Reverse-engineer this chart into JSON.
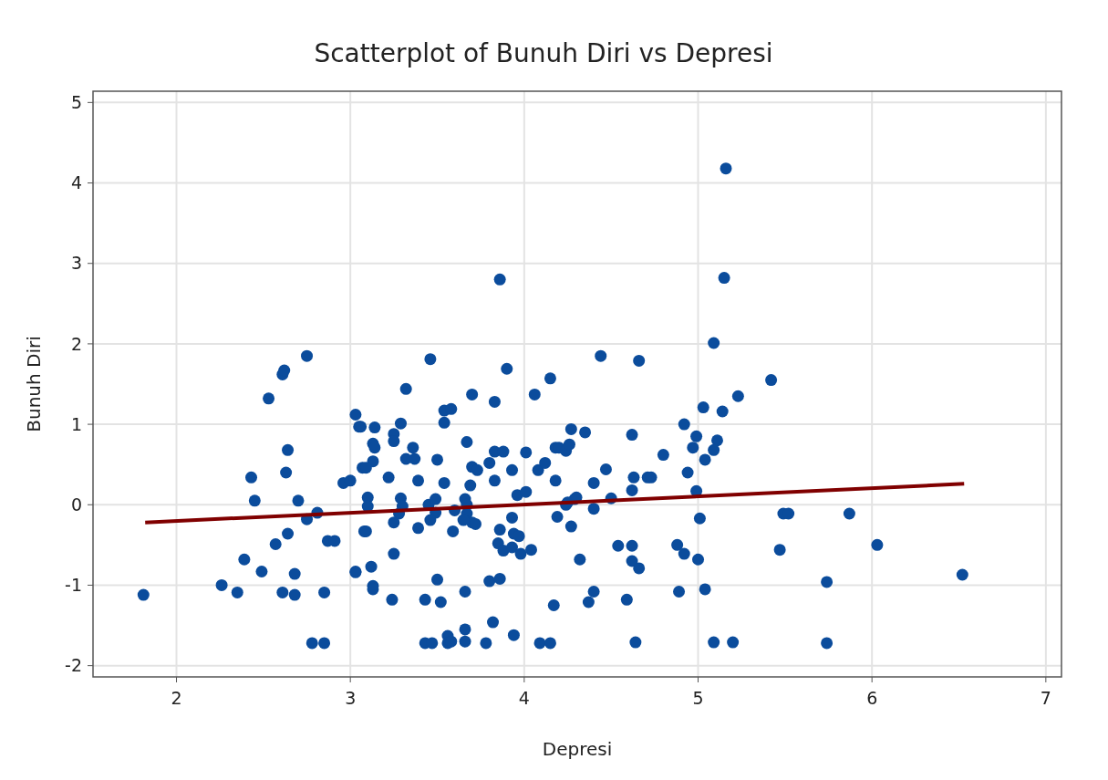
{
  "chart_data": {
    "type": "scatter",
    "title": "Scatterplot of Bunuh Diri vs Depresi",
    "xlabel": "Depresi",
    "ylabel": "Bunuh Diri",
    "xlim": [
      1.52,
      7.09
    ],
    "ylim": [
      -2.14,
      5.14
    ],
    "xticks": [
      2,
      3,
      4,
      5,
      6,
      7
    ],
    "yticks": [
      -2,
      -1,
      0,
      1,
      2,
      3,
      4,
      5
    ],
    "grid": true,
    "series": [
      {
        "marker": "circle",
        "color": "#0b4c9c",
        "x": [
          1.81,
          2.26,
          2.35,
          2.39,
          2.49,
          2.57,
          2.64,
          2.68,
          2.61,
          2.68,
          2.85,
          2.78,
          2.85,
          2.43,
          2.45,
          2.53,
          2.61,
          2.62,
          2.75,
          2.64,
          2.63,
          2.7,
          2.75,
          2.81,
          2.87,
          2.91,
          3.03,
          2.96,
          3.0,
          3.03,
          3.05,
          3.07,
          3.08,
          3.86,
          3.46,
          3.9,
          4.15,
          3.32,
          3.7,
          3.83,
          4.06,
          3.06,
          3.14,
          3.54,
          3.58,
          3.54,
          3.29,
          3.25,
          3.25,
          3.13,
          3.14,
          3.36,
          3.67,
          3.83,
          3.88,
          4.01,
          4.18,
          3.32,
          3.37,
          3.5,
          3.13,
          3.09,
          3.8,
          3.7,
          3.73,
          3.93,
          4.08,
          4.12,
          3.22,
          3.39,
          3.54,
          3.69,
          3.83,
          3.96,
          4.01,
          4.18,
          3.1,
          3.1,
          3.29,
          3.3,
          3.28,
          3.25,
          3.45,
          3.49,
          3.49,
          3.46,
          3.6,
          3.66,
          3.67,
          3.67,
          3.7,
          3.72,
          3.65,
          3.93,
          3.39,
          3.59,
          3.09,
          3.86,
          3.94,
          3.97,
          3.85,
          3.88,
          3.93,
          3.98,
          4.04,
          3.25,
          3.03,
          3.12,
          3.13,
          3.13,
          3.5,
          3.8,
          3.86,
          3.24,
          3.43,
          3.52,
          3.66,
          3.82,
          3.94,
          4.17,
          3.43,
          3.47,
          3.56,
          3.56,
          3.58,
          3.66,
          3.66,
          3.78,
          4.09,
          4.15,
          5.09,
          4.44,
          4.66,
          5.03,
          5.14,
          5.23,
          4.92,
          4.27,
          4.35,
          4.62,
          4.99,
          4.97,
          5.11,
          5.09,
          5.04,
          4.2,
          4.24,
          4.26,
          4.8,
          4.47,
          4.94,
          4.63,
          4.62,
          4.71,
          4.73,
          4.4,
          4.99,
          4.25,
          4.29,
          4.3,
          4.24,
          4.5,
          4.4,
          4.19,
          4.27,
          5.01,
          4.32,
          4.54,
          4.62,
          4.62,
          4.66,
          4.88,
          4.92,
          5.0,
          4.4,
          4.37,
          4.59,
          4.89,
          5.04,
          4.64,
          5.09,
          5.2,
          5.16,
          5.15,
          5.42,
          5.49,
          5.52,
          5.87,
          5.47,
          6.03,
          6.52,
          5.74,
          5.74
        ],
        "values": [
          -1.12,
          -1.0,
          -1.09,
          -0.68,
          -0.83,
          -0.49,
          -0.36,
          -0.86,
          -1.09,
          -1.12,
          -1.09,
          -1.72,
          -1.72,
          0.34,
          0.05,
          1.32,
          1.62,
          1.67,
          1.85,
          0.68,
          0.4,
          0.05,
          -0.18,
          -0.1,
          -0.45,
          -0.45,
          -0.83,
          0.27,
          0.3,
          1.12,
          0.97,
          0.46,
          -0.33,
          2.8,
          1.81,
          1.69,
          1.57,
          1.44,
          1.37,
          1.28,
          1.37,
          0.97,
          0.96,
          1.17,
          1.19,
          1.02,
          1.01,
          0.88,
          0.79,
          0.76,
          0.71,
          0.71,
          0.78,
          0.66,
          0.66,
          0.65,
          0.71,
          0.57,
          0.57,
          0.56,
          0.54,
          0.46,
          0.52,
          0.47,
          0.43,
          0.43,
          0.43,
          0.52,
          0.34,
          0.3,
          0.27,
          0.24,
          0.3,
          0.12,
          0.16,
          0.3,
          0.09,
          -0.02,
          0.08,
          -0.02,
          -0.11,
          -0.22,
          0.0,
          0.07,
          -0.1,
          -0.19,
          -0.07,
          0.07,
          0.0,
          -0.11,
          -0.22,
          -0.24,
          -0.19,
          -0.16,
          -0.29,
          -0.33,
          -0.33,
          -0.31,
          -0.36,
          -0.39,
          -0.48,
          -0.57,
          -0.53,
          -0.61,
          -0.56,
          -0.61,
          -0.84,
          -0.77,
          -1.01,
          -1.05,
          -0.93,
          -0.95,
          -0.92,
          -1.18,
          -1.18,
          -1.21,
          -1.08,
          -1.46,
          -1.62,
          -1.25,
          -1.72,
          -1.72,
          -1.63,
          -1.72,
          -1.7,
          -1.55,
          -1.7,
          -1.72,
          -1.72,
          -1.72,
          2.01,
          1.85,
          1.79,
          1.21,
          1.16,
          1.35,
          1.0,
          0.94,
          0.9,
          0.87,
          0.85,
          0.71,
          0.8,
          0.68,
          0.56,
          0.71,
          0.67,
          0.75,
          0.62,
          0.44,
          0.4,
          0.34,
          0.18,
          0.34,
          0.34,
          0.27,
          0.17,
          0.03,
          0.07,
          0.09,
          0.0,
          0.08,
          -0.05,
          -0.15,
          -0.27,
          -0.17,
          -0.68,
          -0.51,
          -0.51,
          -0.7,
          -0.79,
          -0.5,
          -0.61,
          -0.68,
          -1.08,
          -1.21,
          -1.18,
          -1.08,
          -1.05,
          -1.71,
          -1.71,
          -1.71,
          4.18,
          2.82,
          1.55,
          -0.11,
          -0.11,
          -0.11,
          -0.56,
          -0.5,
          -0.87,
          -0.96,
          -1.72
        ]
      },
      {
        "type": "line",
        "color": "#800000",
        "x": [
          1.82,
          6.53
        ],
        "values": [
          -0.22,
          0.26
        ]
      }
    ]
  }
}
